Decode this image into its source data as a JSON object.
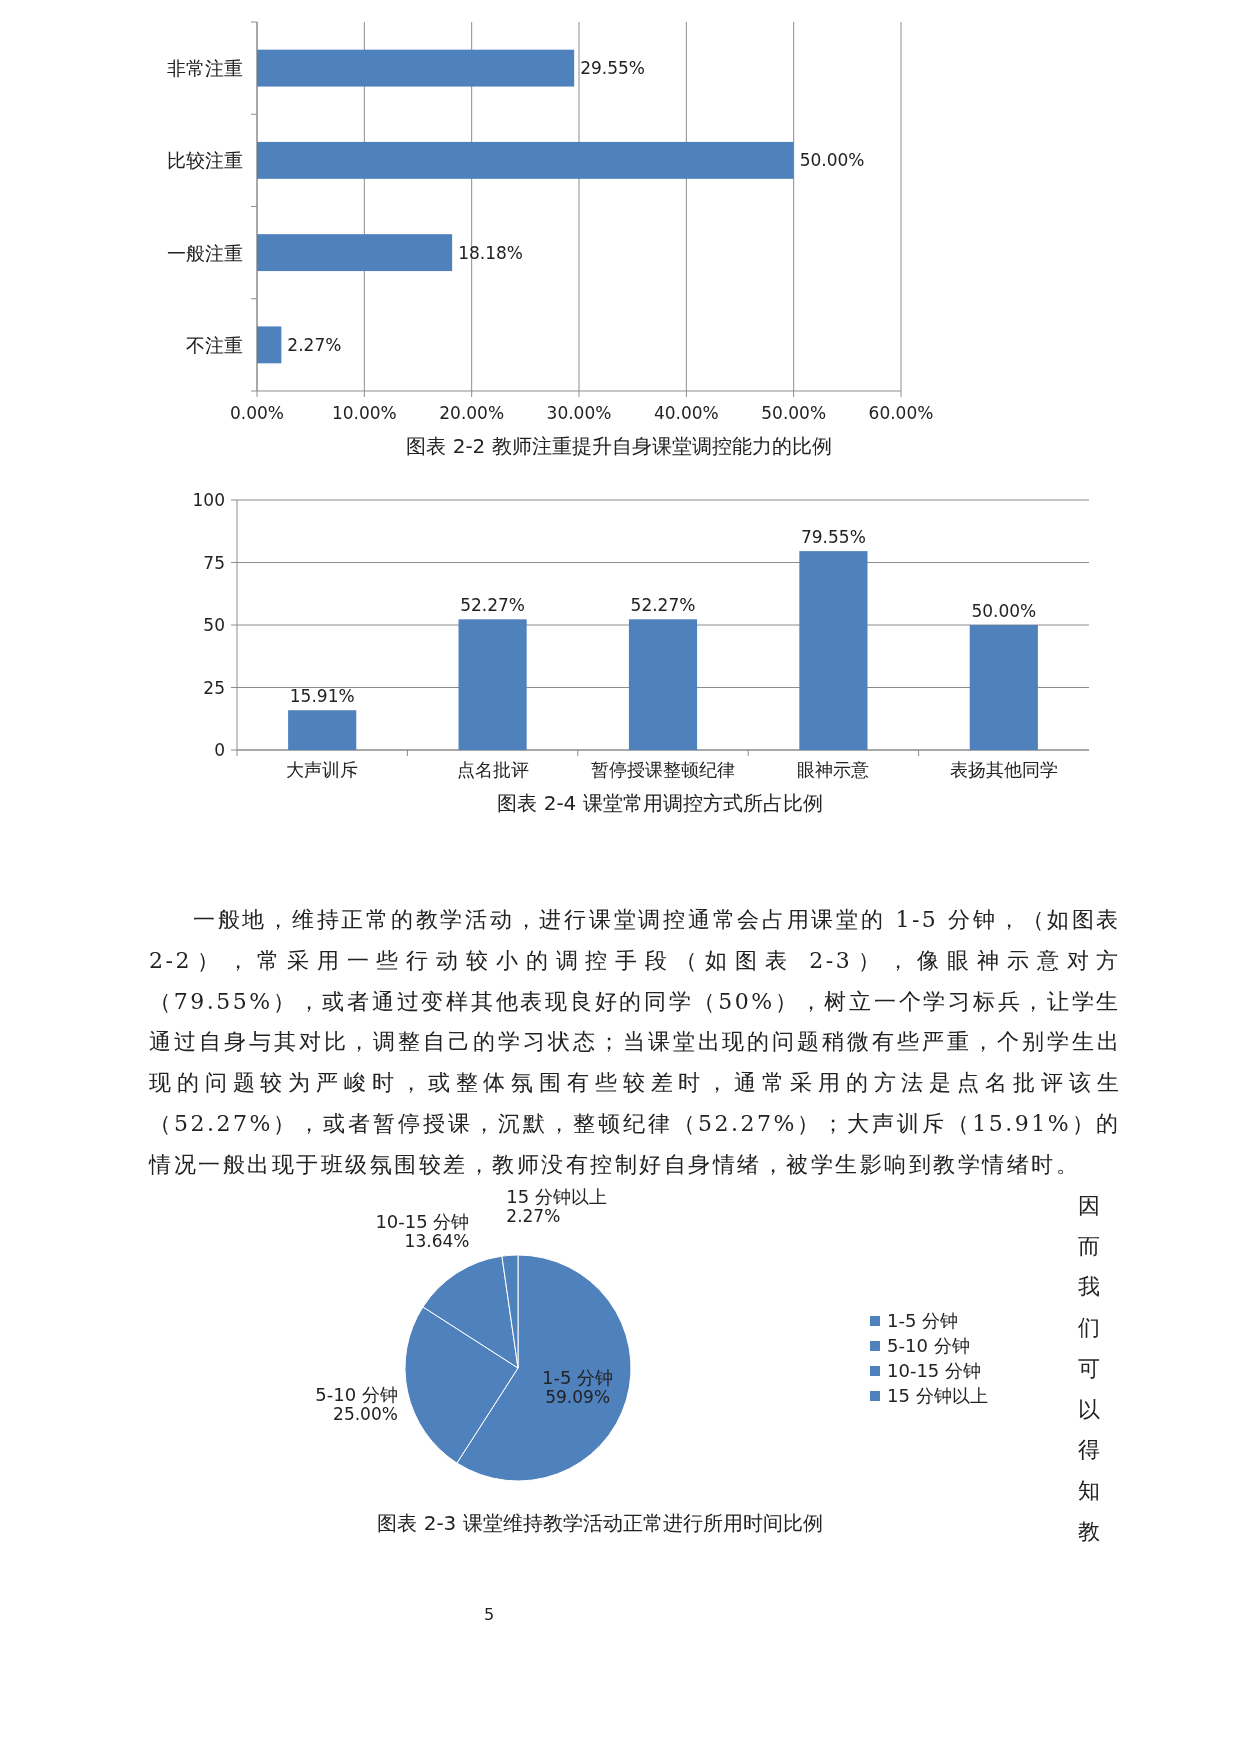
{
  "chart_data": [
    {
      "type": "bar",
      "orientation": "horizontal",
      "title": "图表 2-2  教师注重提升自身课堂调控能力的比例",
      "categories": [
        "非常注重",
        "比较注重",
        "一般注重",
        "不注重"
      ],
      "series": [
        {
          "color": "#4f81bd",
          "values": [
            29.55,
            50.0,
            18.18,
            2.27
          ]
        }
      ],
      "value_labels": [
        "29.55%",
        "50.00%",
        "18.18%",
        "2.27%"
      ],
      "xlim": [
        0,
        60
      ],
      "xticks": [
        {
          "value": 0,
          "label": "0.00%"
        },
        {
          "value": 10,
          "label": "10.00%"
        },
        {
          "value": 20,
          "label": "20.00%"
        },
        {
          "value": 30,
          "label": "30.00%"
        },
        {
          "value": 40,
          "label": "40.00%"
        },
        {
          "value": 50,
          "label": "50.00%"
        },
        {
          "value": 60,
          "label": "60.00%"
        }
      ],
      "grid": "x"
    },
    {
      "type": "bar",
      "title": "图表 2-4  课堂常用调控方式所占比例",
      "categories": [
        "大声训斥",
        "点名批评",
        "暂停授课整顿纪律",
        "眼神示意",
        "表扬其他同学"
      ],
      "series": [
        {
          "color": "#4f81bd",
          "values": [
            15.91,
            52.27,
            52.27,
            79.55,
            50.0
          ]
        }
      ],
      "value_labels": [
        "15.91%",
        "52.27%",
        "52.27%",
        "79.55%",
        "50.00%"
      ],
      "ylim": [
        0,
        100
      ],
      "yticks": [
        0,
        25,
        50,
        75,
        100
      ],
      "grid": "y"
    },
    {
      "type": "pie",
      "title": "图表 2-3  课堂维持教学活动正常进行所用时间比例",
      "categories": [
        "1-5 分钟",
        "5-10 分钟",
        "10-15 分钟",
        "15 分钟以上"
      ],
      "values": [
        59.09,
        25.0,
        13.64,
        2.27
      ],
      "colors": [
        "#4f81bd",
        "#4f81bd",
        "#4f81bd",
        "#4f81bd"
      ],
      "value_labels": [
        "59.09%",
        "25.00%",
        "13.64%",
        "2.27%"
      ],
      "legend": "right",
      "annotations": [
        "一般地，维持正常的教学活动，进行课堂调控通常会占用课堂的 1-5 分钟，（如图表 2-2），常采用一些行动较小的调控手段（如图表 2-3），像眼神示意对方（79.55%），或者通过变样其他表现良好的同学（50%），树立一个学习标兵，让学生通过自身与其对比，调整自己的学习状态；当课堂出现的问题稍微有些严重，个别学生出现的问题较为严峻时，或整体氛围有些较差时，通常采用的方法是点名批评该生（52.27%），或者暂停授课，沉默，整顿纪律（52.27%）；大声训斥（15.91%）的情况一般出现于班级氛围较差，教师没有控制好自身情绪，被学生影响到教学情绪时。",
        "因而我们可以得知教",
        "5"
      ]
    }
  ]
}
